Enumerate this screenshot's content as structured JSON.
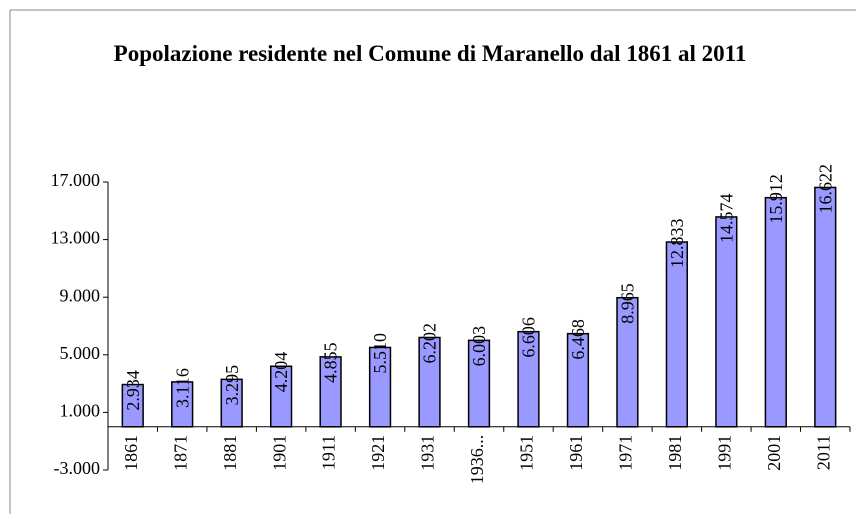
{
  "chart_data": {
    "type": "bar",
    "title": "Popolazione residente nel Comune di Maranello dal 1861 al 2011",
    "categories": [
      "1861",
      "1871",
      "1881",
      "1901",
      "1911",
      "1921",
      "1931",
      "1936...",
      "1951",
      "1961",
      "1971",
      "1981",
      "1991",
      "2001",
      "2011"
    ],
    "values": [
      2934,
      3116,
      3295,
      4204,
      4855,
      5510,
      6202,
      6003,
      6606,
      6468,
      8965,
      12833,
      14574,
      15912,
      16622
    ],
    "value_labels": [
      "2.934",
      "3.116",
      "3.295",
      "4.204",
      "4.855",
      "5.510",
      "6.202",
      "6.003",
      "6.606",
      "6.468",
      "8.965",
      "12.833",
      "14.574",
      "15.912",
      "16.622"
    ],
    "color": "#9999ff",
    "ylim": [
      -3000,
      17000
    ],
    "yticks": [
      {
        "value": -3000,
        "label": "-3.000"
      },
      {
        "value": 1000,
        "label": "1.000"
      },
      {
        "value": 5000,
        "label": "5.000"
      },
      {
        "value": 9000,
        "label": "9.000"
      },
      {
        "value": 13000,
        "label": "13.000"
      },
      {
        "value": 17000,
        "label": "17.000"
      }
    ],
    "grid": false
  }
}
